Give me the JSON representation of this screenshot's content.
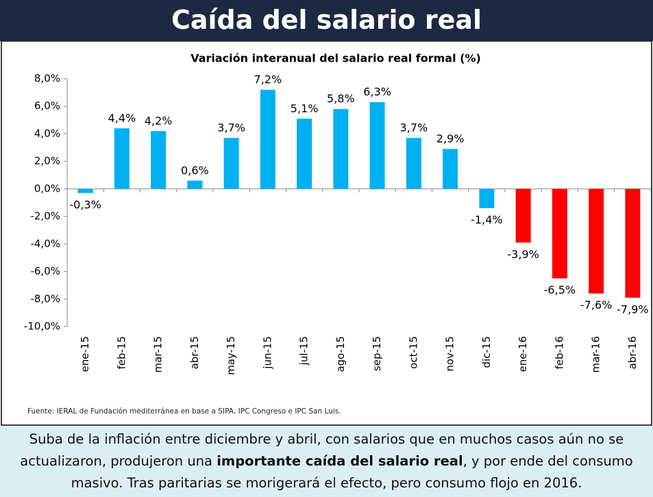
{
  "header": {
    "title": "Caída del salario real"
  },
  "chart_data": {
    "type": "bar",
    "title": "Variación interanual del salario real formal (%)",
    "categories": [
      "ene-15",
      "feb-15",
      "mar-15",
      "abr-15",
      "may-15",
      "jun-15",
      "jul-15",
      "ago-15",
      "sep-15",
      "oct-15",
      "nov-15",
      "dic-15",
      "ene-16",
      "feb-16",
      "mar-16",
      "abr-16"
    ],
    "values": [
      -0.3,
      4.4,
      4.2,
      0.6,
      3.7,
      7.2,
      5.1,
      5.8,
      6.3,
      3.7,
      2.9,
      -1.4,
      -3.9,
      -6.5,
      -7.6,
      -7.9
    ],
    "value_labels": [
      "-0,3%",
      "4,4%",
      "4,2%",
      "0,6%",
      "3,7%",
      "7,2%",
      "5,1%",
      "5,8%",
      "6,3%",
      "3,7%",
      "2,9%",
      "-1,4%",
      "-3,9%",
      "-6,5%",
      "-7,6%",
      "-7,9%"
    ],
    "colors": [
      "#00b0f0",
      "#00b0f0",
      "#00b0f0",
      "#00b0f0",
      "#00b0f0",
      "#00b0f0",
      "#00b0f0",
      "#00b0f0",
      "#00b0f0",
      "#00b0f0",
      "#00b0f0",
      "#00b0f0",
      "#ff0000",
      "#ff0000",
      "#ff0000",
      "#ff0000"
    ],
    "ylim": [
      -10,
      8
    ],
    "yticks": [
      {
        "value": 8,
        "label": "8,0%"
      },
      {
        "value": 6,
        "label": "6,0%"
      },
      {
        "value": 4,
        "label": "4,0%"
      },
      {
        "value": 2,
        "label": "2,0%"
      },
      {
        "value": 0,
        "label": "0,0%"
      },
      {
        "value": -2,
        "label": "-2,0%"
      },
      {
        "value": -4,
        "label": "-4,0%"
      },
      {
        "value": -6,
        "label": "-6,0%"
      },
      {
        "value": -8,
        "label": "-8,0%"
      },
      {
        "value": -10,
        "label": "-10,0%"
      }
    ],
    "grid": false
  },
  "source": "Fuente: IERAL de Fundación mediterránea en base a SIPA, IPC Congreso e IPC San Luis.",
  "note": {
    "before": "Suba de la inflación entre diciembre y abril, con salarios que en muchos casos aún no se actualizaron, produjeron una ",
    "bold": "importante caída del salario real",
    "after": ", y por ende del consumo masivo. Tras paritarias se morigerará el efecto, pero consumo flojo en 2016."
  }
}
